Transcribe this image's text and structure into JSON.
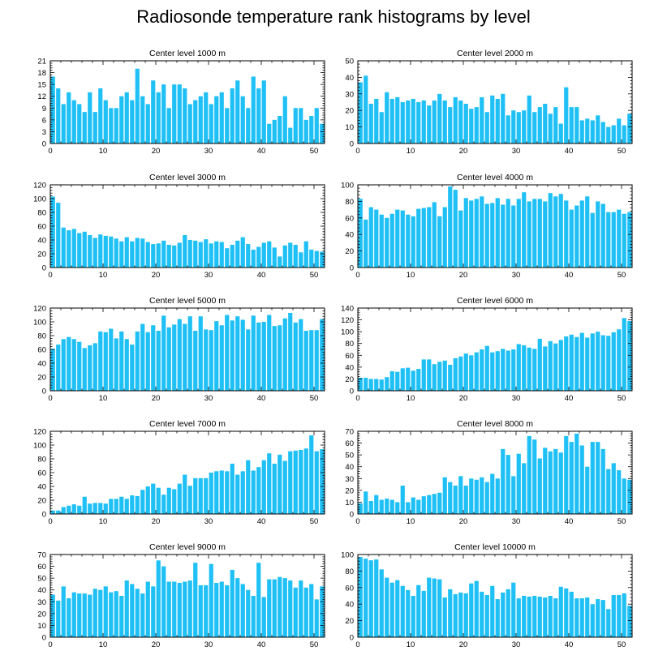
{
  "figure": {
    "title": "Radiosonde temperature rank histograms by level"
  },
  "colors": {
    "bar": "#1ec0f5",
    "frame": "#000000",
    "background": "#ffffff"
  },
  "chart_data": [
    {
      "type": "bar",
      "title": "Center level 1000 m",
      "xlim": [
        0,
        52
      ],
      "ylim": [
        0,
        21
      ],
      "xticks": [
        0,
        10,
        20,
        30,
        40,
        50
      ],
      "yticks": [
        0,
        3,
        6,
        9,
        12,
        15,
        18,
        21
      ],
      "values": [
        17,
        14,
        10,
        13,
        11,
        10,
        8,
        13,
        8,
        14,
        11,
        9,
        9,
        12,
        13,
        11,
        19,
        12,
        10,
        16,
        13,
        15,
        9,
        15,
        15,
        14,
        10,
        11,
        12,
        13,
        10,
        12,
        13,
        9,
        14,
        16,
        12,
        9,
        17,
        14,
        16,
        5,
        6,
        7,
        12,
        4,
        9,
        9,
        6,
        7,
        9,
        5
      ]
    },
    {
      "type": "bar",
      "title": "Center level 2000 m",
      "xlim": [
        0,
        52
      ],
      "ylim": [
        0,
        50
      ],
      "xticks": [
        0,
        10,
        20,
        30,
        40,
        50
      ],
      "yticks": [
        0,
        10,
        20,
        30,
        40,
        50
      ],
      "values": [
        37,
        41,
        24,
        27,
        19,
        31,
        27,
        28,
        25,
        26,
        27,
        25,
        26,
        23,
        26,
        30,
        26,
        22,
        28,
        26,
        24,
        21,
        22,
        28,
        19,
        29,
        27,
        30,
        17,
        20,
        19,
        20,
        29,
        19,
        22,
        24,
        18,
        22,
        12,
        34,
        22,
        22,
        14,
        15,
        14,
        17,
        13,
        10,
        11,
        15,
        11,
        18
      ]
    },
    {
      "type": "bar",
      "title": "Center level 3000 m",
      "xlim": [
        0,
        52
      ],
      "ylim": [
        0,
        120
      ],
      "xticks": [
        0,
        10,
        20,
        30,
        40,
        50
      ],
      "yticks": [
        0,
        20,
        40,
        60,
        80,
        100,
        120
      ],
      "values": [
        103,
        94,
        58,
        54,
        56,
        50,
        52,
        47,
        43,
        48,
        46,
        45,
        42,
        38,
        44,
        38,
        43,
        42,
        37,
        34,
        35,
        39,
        33,
        32,
        36,
        47,
        40,
        39,
        37,
        41,
        35,
        38,
        37,
        28,
        33,
        39,
        44,
        34,
        26,
        30,
        36,
        38,
        29,
        16,
        32,
        36,
        33,
        22,
        38,
        26,
        24,
        23
      ]
    },
    {
      "type": "bar",
      "title": "Center level 4000 m",
      "xlim": [
        0,
        52
      ],
      "ylim": [
        0,
        100
      ],
      "xticks": [
        0,
        10,
        20,
        30,
        40,
        50
      ],
      "yticks": [
        0,
        20,
        40,
        60,
        80,
        100
      ],
      "values": [
        83,
        58,
        73,
        70,
        64,
        60,
        65,
        70,
        69,
        64,
        62,
        71,
        72,
        73,
        79,
        62,
        73,
        98,
        94,
        69,
        84,
        81,
        83,
        86,
        77,
        78,
        84,
        76,
        83,
        75,
        83,
        91,
        80,
        83,
        83,
        80,
        90,
        86,
        89,
        81,
        70,
        75,
        81,
        86,
        66,
        80,
        77,
        67,
        67,
        70,
        65,
        67
      ]
    },
    {
      "type": "bar",
      "title": "Center level 5000 m",
      "xlim": [
        0,
        52
      ],
      "ylim": [
        0,
        120
      ],
      "xticks": [
        0,
        10,
        20,
        30,
        40,
        50
      ],
      "yticks": [
        0,
        20,
        40,
        60,
        80,
        100,
        120
      ],
      "values": [
        61,
        67,
        75,
        78,
        75,
        71,
        62,
        66,
        69,
        86,
        85,
        90,
        76,
        86,
        75,
        67,
        86,
        97,
        85,
        95,
        87,
        109,
        92,
        96,
        104,
        97,
        108,
        87,
        108,
        89,
        88,
        101,
        95,
        110,
        102,
        108,
        103,
        89,
        109,
        99,
        100,
        110,
        94,
        95,
        105,
        113,
        99,
        104,
        87,
        88,
        88,
        104
      ]
    },
    {
      "type": "bar",
      "title": "Center level 6000 m",
      "xlim": [
        0,
        52
      ],
      "ylim": [
        0,
        140
      ],
      "xticks": [
        0,
        10,
        20,
        30,
        40,
        50
      ],
      "yticks": [
        0,
        20,
        40,
        60,
        80,
        100,
        120,
        140
      ],
      "values": [
        22,
        22,
        20,
        20,
        19,
        23,
        33,
        32,
        38,
        39,
        34,
        37,
        53,
        53,
        45,
        49,
        51,
        44,
        55,
        58,
        63,
        60,
        65,
        70,
        76,
        65,
        67,
        71,
        68,
        70,
        79,
        77,
        73,
        71,
        88,
        75,
        84,
        80,
        86,
        92,
        95,
        91,
        98,
        90,
        97,
        100,
        94,
        93,
        99,
        104,
        123,
        118
      ]
    },
    {
      "type": "bar",
      "title": "Center level 7000 m",
      "xlim": [
        0,
        52
      ],
      "ylim": [
        0,
        120
      ],
      "xticks": [
        0,
        10,
        20,
        30,
        40,
        50
      ],
      "yticks": [
        0,
        20,
        40,
        60,
        80,
        100,
        120
      ],
      "values": [
        5,
        5,
        10,
        12,
        14,
        12,
        25,
        15,
        16,
        16,
        15,
        22,
        22,
        25,
        22,
        27,
        26,
        35,
        40,
        44,
        38,
        28,
        38,
        36,
        44,
        57,
        41,
        52,
        52,
        52,
        60,
        62,
        63,
        62,
        73,
        57,
        62,
        78,
        63,
        68,
        78,
        88,
        73,
        86,
        77,
        91,
        92,
        93,
        95,
        114,
        91,
        94
      ]
    },
    {
      "type": "bar",
      "title": "Center level 8000 m",
      "xlim": [
        0,
        52
      ],
      "ylim": [
        0,
        70
      ],
      "xticks": [
        0,
        10,
        20,
        30,
        40,
        50
      ],
      "yticks": [
        0,
        10,
        20,
        30,
        40,
        50,
        60,
        70
      ],
      "values": [
        9,
        19,
        11,
        16,
        12,
        13,
        12,
        10,
        24,
        10,
        14,
        12,
        15,
        16,
        17,
        18,
        31,
        27,
        24,
        32,
        24,
        30,
        29,
        31,
        27,
        34,
        30,
        55,
        50,
        32,
        51,
        43,
        66,
        63,
        47,
        56,
        53,
        55,
        52,
        66,
        61,
        68,
        58,
        40,
        61,
        61,
        55,
        38,
        43,
        37,
        30,
        29
      ]
    },
    {
      "type": "bar",
      "title": "Center level 9000 m",
      "xlim": [
        0,
        52
      ],
      "ylim": [
        0,
        70
      ],
      "xticks": [
        0,
        10,
        20,
        30,
        40,
        50
      ],
      "yticks": [
        0,
        10,
        20,
        30,
        40,
        50,
        60,
        70
      ],
      "values": [
        36,
        31,
        43,
        33,
        38,
        37,
        37,
        36,
        41,
        40,
        43,
        38,
        39,
        35,
        48,
        45,
        41,
        37,
        47,
        43,
        65,
        60,
        47,
        47,
        46,
        47,
        48,
        63,
        44,
        44,
        62,
        46,
        47,
        44,
        57,
        50,
        45,
        40,
        35,
        63,
        34,
        49,
        49,
        51,
        50,
        48,
        42,
        48,
        42,
        45,
        32,
        43
      ]
    },
    {
      "type": "bar",
      "title": "Center level 10000 m",
      "xlim": [
        0,
        52
      ],
      "ylim": [
        0,
        100
      ],
      "xticks": [
        0,
        10,
        20,
        30,
        40,
        50
      ],
      "yticks": [
        0,
        20,
        40,
        60,
        80,
        100
      ],
      "values": [
        97,
        95,
        93,
        94,
        82,
        72,
        66,
        69,
        62,
        57,
        50,
        63,
        56,
        72,
        71,
        70,
        48,
        58,
        52,
        54,
        53,
        65,
        68,
        55,
        51,
        62,
        46,
        54,
        58,
        66,
        47,
        50,
        49,
        50,
        49,
        48,
        50,
        47,
        61,
        59,
        55,
        47,
        47,
        48,
        40,
        46,
        45,
        34,
        51,
        51,
        53,
        38
      ]
    }
  ]
}
